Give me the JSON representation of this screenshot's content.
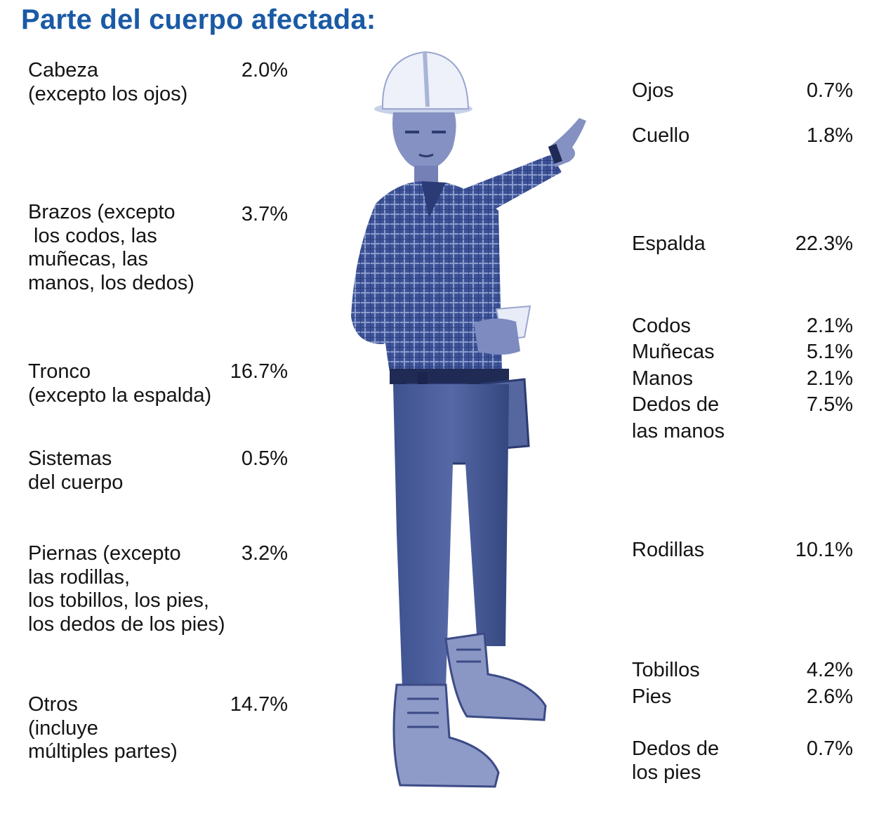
{
  "title": "Parte del cuerpo afectada:",
  "accent_color": "#1a5aa5",
  "figure_tint": "#4a60a5",
  "figure_description_icon": "pointing-worker-figure",
  "left_items": [
    {
      "label": "Cabeza\n(excepto los ojos)",
      "value": "2.0%"
    },
    {
      "label": "Brazos (excepto\n los codos, las\nmuñecas, las\nmanos, los dedos)",
      "value": "3.7%"
    },
    {
      "label": "Tronco\n(excepto la espalda)",
      "value": "16.7%"
    },
    {
      "label": "Sistemas\ndel cuerpo",
      "value": "0.5%"
    },
    {
      "label": "Piernas (excepto\nlas rodillas,\nlos tobillos, los pies,\nlos dedos de los pies)",
      "value": "3.2%"
    },
    {
      "label": "Otros\n(incluye\nmúltiples partes)",
      "value": "14.7%"
    }
  ],
  "right_items": [
    {
      "label": "Ojos",
      "value": "0.7%"
    },
    {
      "label": "Cuello",
      "value": "1.8%"
    },
    {
      "label": "Espalda",
      "value": "22.3%"
    },
    {
      "label": "Codos",
      "value": "2.1%"
    },
    {
      "label": "Muñecas",
      "value": "5.1%"
    },
    {
      "label": "Manos",
      "value": "2.1%"
    },
    {
      "label": "Dedos de\nlas manos",
      "value": "7.5%"
    },
    {
      "label": "Rodillas",
      "value": "10.1%"
    },
    {
      "label": "Tobillos",
      "value": "4.2%"
    },
    {
      "label": "Pies",
      "value": "2.6%"
    },
    {
      "label": "Dedos de\nlos pies",
      "value": "0.7%"
    }
  ]
}
